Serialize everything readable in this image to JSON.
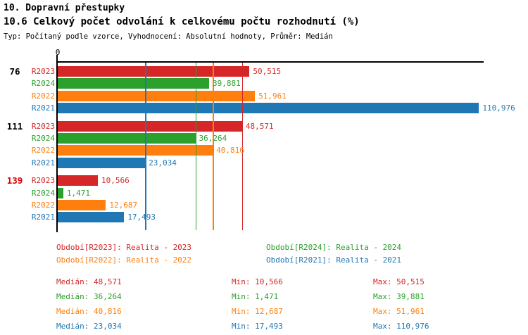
{
  "header": {
    "title": "10. Dopravní přestupky",
    "subtitle": "10.6 Celkový počet odvolání k celkovému počtu rozhodnutí (%)",
    "meta": "Typ: Počítaný podle vzorce, Vyhodnocení: Absolutní hodnoty, Průměr: Medián"
  },
  "colors": {
    "R2023": "#d62728",
    "R2024": "#2ca02c",
    "R2022": "#ff7f0e",
    "R2021": "#1f77b4",
    "axis": "#000000",
    "group_label_default": "#000000",
    "group_label_alert": "#dd0000"
  },
  "chart_data": {
    "type": "bar",
    "orientation": "horizontal",
    "axis_origin_label": "0",
    "series_order": [
      "R2023",
      "R2024",
      "R2022",
      "R2021"
    ],
    "groups": [
      {
        "label": "76",
        "label_color_key": "group_label_default",
        "bars": [
          {
            "series": "R2023",
            "value": 50.515,
            "display": "50,515"
          },
          {
            "series": "R2024",
            "value": 39.881,
            "display": "39,881"
          },
          {
            "series": "R2022",
            "value": 51.961,
            "display": "51,961"
          },
          {
            "series": "R2021",
            "value": 110.976,
            "display": "110,976"
          }
        ]
      },
      {
        "label": "111",
        "label_color_key": "group_label_default",
        "bars": [
          {
            "series": "R2023",
            "value": 48.571,
            "display": "48,571"
          },
          {
            "series": "R2024",
            "value": 36.264,
            "display": "36,264"
          },
          {
            "series": "R2022",
            "value": 40.816,
            "display": "40,816"
          },
          {
            "series": "R2021",
            "value": 23.034,
            "display": "23,034"
          }
        ]
      },
      {
        "label": "139",
        "label_color_key": "group_label_alert",
        "bars": [
          {
            "series": "R2023",
            "value": 10.566,
            "display": "10,566"
          },
          {
            "series": "R2024",
            "value": 1.471,
            "display": "1,471"
          },
          {
            "series": "R2022",
            "value": 12.687,
            "display": "12,687"
          },
          {
            "series": "R2021",
            "value": 17.493,
            "display": "17,493"
          }
        ]
      }
    ],
    "median_lines": [
      {
        "series": "R2023",
        "value": 48.571
      },
      {
        "series": "R2024",
        "value": 36.264
      },
      {
        "series": "R2022",
        "value": 40.816
      },
      {
        "series": "R2021",
        "value": 23.034
      }
    ],
    "x_max": 112.2,
    "grid": false,
    "legend_position": "bottom"
  },
  "legend": {
    "items": [
      {
        "series": "R2023",
        "text": "Období[R2023]: Realita - 2023"
      },
      {
        "series": "R2024",
        "text": "Období[R2024]: Realita - 2024"
      },
      {
        "series": "R2022",
        "text": "Období[R2022]: Realita - 2022"
      },
      {
        "series": "R2021",
        "text": "Období[R2021]: Realita - 2021"
      }
    ]
  },
  "stats": {
    "rows": [
      {
        "series": "R2023",
        "cells": [
          "Medián: 48,571",
          "Min: 10,566",
          "Max: 50,515"
        ]
      },
      {
        "series": "R2024",
        "cells": [
          "Medián: 36,264",
          "Min: 1,471",
          "Max: 39,881"
        ]
      },
      {
        "series": "R2022",
        "cells": [
          "Medián: 40,816",
          "Min: 12,687",
          "Max: 51,961"
        ]
      },
      {
        "series": "R2021",
        "cells": [
          "Medián: 23,034",
          "Min: 17,493",
          "Max: 110,976"
        ]
      }
    ]
  }
}
